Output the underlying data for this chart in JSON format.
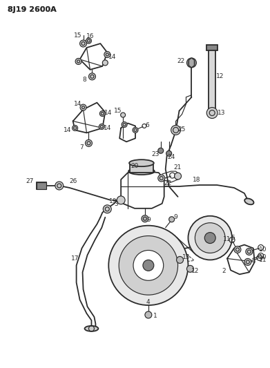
{
  "title": "8J19 2600A",
  "bg_color": "#ffffff",
  "line_color": "#2a2a2a",
  "fig_width": 3.91,
  "fig_height": 5.33,
  "dpi": 100
}
